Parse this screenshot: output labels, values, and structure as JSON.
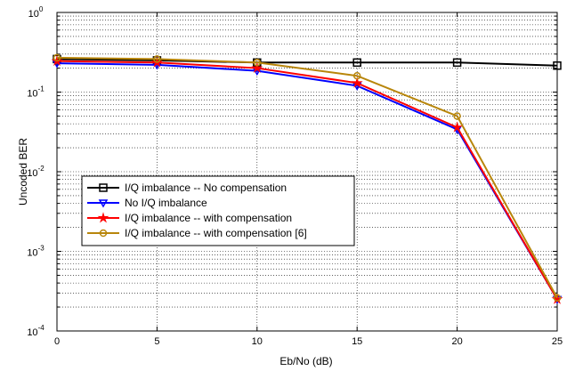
{
  "chart_data": {
    "type": "line",
    "xlabel": "Eb/No (dB)",
    "ylabel": "Uncoded BER",
    "yscale": "log",
    "xlim": [
      0,
      25
    ],
    "ylim": [
      0.0001,
      1
    ],
    "x_ticks": [
      "0",
      "5",
      "10",
      "15",
      "20",
      "25"
    ],
    "y_ticks": [
      {
        "base": "10",
        "exp": "-4"
      },
      {
        "base": "10",
        "exp": "-3"
      },
      {
        "base": "10",
        "exp": "-2"
      },
      {
        "base": "10",
        "exp": "-1"
      },
      {
        "base": "10",
        "exp": "0"
      }
    ],
    "grid": true,
    "legend_position": "lower-left",
    "x": [
      0,
      5,
      10,
      15,
      20,
      25
    ],
    "series": [
      {
        "name": "I/Q imbalance -- No compensation",
        "color": "#000000",
        "marker": "square",
        "values": [
          0.26,
          0.25,
          0.235,
          0.235,
          0.235,
          0.215
        ]
      },
      {
        "name": "No I/Q imbalance",
        "color": "#0000ff",
        "marker": "triangle-down",
        "values": [
          0.23,
          0.22,
          0.185,
          0.12,
          0.034,
          0.00025
        ]
      },
      {
        "name": "I/Q imbalance -- with compensation",
        "color": "#ff0000",
        "marker": "star",
        "values": [
          0.245,
          0.235,
          0.2,
          0.13,
          0.036,
          0.00025
        ]
      },
      {
        "name": "I/Q imbalance -- with compensation [6]",
        "color": "#b8860b",
        "marker": "circle",
        "values": [
          0.27,
          0.26,
          0.235,
          0.16,
          0.05,
          0.00026
        ]
      }
    ]
  }
}
